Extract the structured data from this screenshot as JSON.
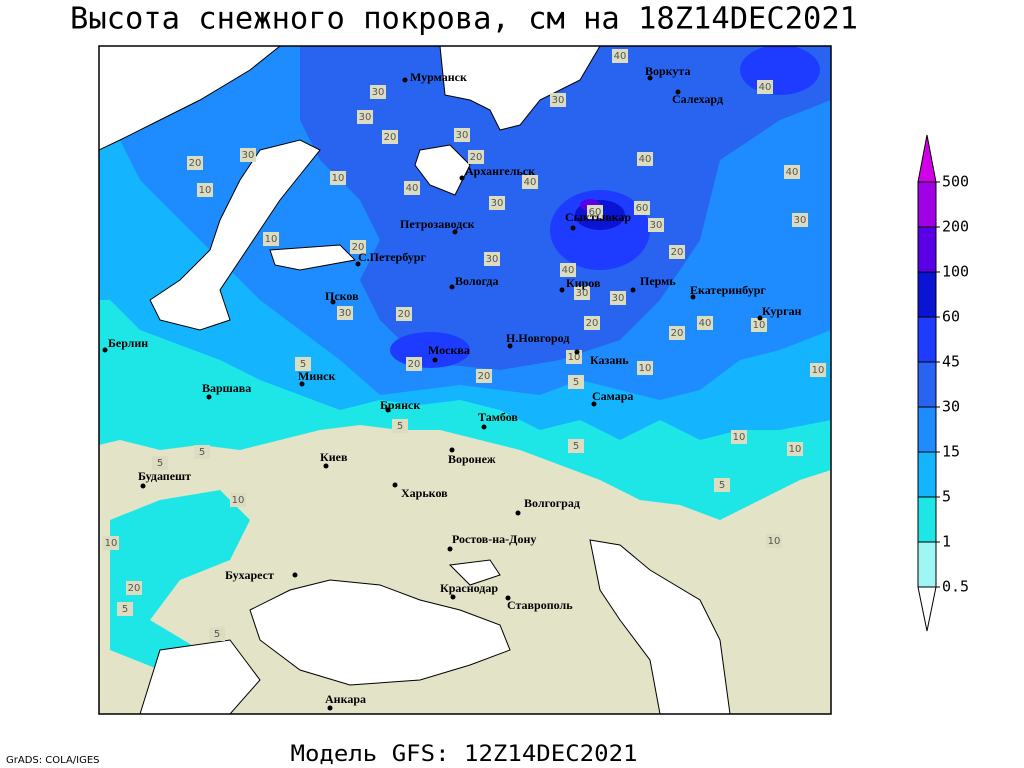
{
  "title": "Высота снежного покрова, см на 18Z14DEC2021",
  "footer": "Модель GFS: 12Z14DEC2021",
  "credit": "GrADS: COLA/IGES",
  "colorbar": {
    "levels": [
      0.5,
      1,
      5,
      15,
      30,
      45,
      60,
      100,
      200,
      500
    ],
    "colors": [
      "#ffffff",
      "#a0f5f5",
      "#1ee6e6",
      "#14b4ff",
      "#1e8cff",
      "#2864f0",
      "#1e3cff",
      "#0a14d2",
      "#5a00e6",
      "#a000e6",
      "#d200e6"
    ]
  },
  "cities": [
    "Мурманск",
    "Воркута",
    "Салехард",
    "Архангельск",
    "Сыктывкар",
    "Петрозаводск",
    "С.Петербург",
    "Вологда",
    "Киров",
    "Пермь",
    "Екатеринбург",
    "Курган",
    "Псков",
    "Н.Новгород",
    "Казань",
    "Москва",
    "Минск",
    "Берлин",
    "Варшава",
    "Брянск",
    "Самара",
    "Тамбов",
    "Киев",
    "Воронеж",
    "Будапешт",
    "Харьков",
    "Волгоград",
    "Ростов-на-Дону",
    "Бухарест",
    "Краснодар",
    "Ставрополь",
    "Анкара"
  ],
  "contour_labels": [
    40,
    30,
    40,
    30,
    30,
    20,
    30,
    20,
    20,
    30,
    10,
    10,
    40,
    40,
    40,
    40,
    30,
    60,
    60,
    30,
    30,
    20,
    10,
    30,
    40,
    20,
    30,
    30,
    40,
    10,
    30,
    20,
    20,
    20,
    10,
    10,
    10,
    5,
    20,
    20,
    5,
    5,
    5,
    5,
    10,
    10,
    5,
    10,
    10,
    10,
    20,
    5,
    5,
    5
  ]
}
